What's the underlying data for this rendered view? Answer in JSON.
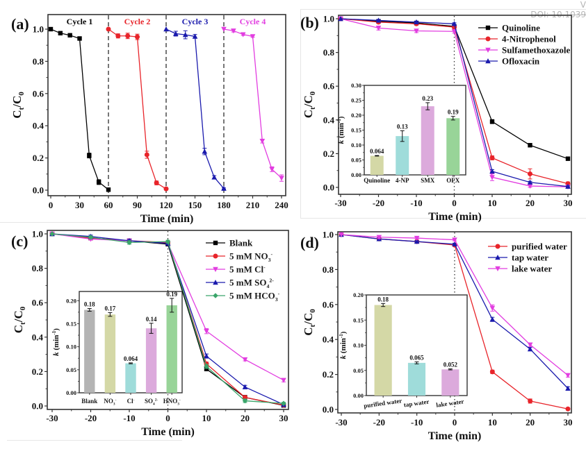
{
  "watermark": {
    "line1": "V",
    "line2": "DOI: 10.1039"
  },
  "chart_data": [
    {
      "id": "a",
      "type": "line",
      "panel_label": "(a)",
      "title": "",
      "xlabel": "Time (min)",
      "ylabel": "Ct/C0",
      "xlim": [
        0,
        240
      ],
      "ylim": [
        0,
        1.0
      ],
      "xticks": [
        0,
        30,
        60,
        90,
        120,
        150,
        180,
        210,
        240
      ],
      "yticks": [
        0.0,
        0.2,
        0.4,
        0.6,
        0.8,
        1.0
      ],
      "ytick_labels": [
        "0.0",
        "0.2",
        "0.4",
        "0.6",
        "0.8",
        "1.0"
      ],
      "vlines_dashed": [
        60,
        120,
        180
      ],
      "annotations": [
        {
          "text": "Cycle 1",
          "x": 30,
          "color": "#000000"
        },
        {
          "text": "Cycle 2",
          "x": 90,
          "color": "#e8242a"
        },
        {
          "text": "Cycle 3",
          "x": 150,
          "color": "#1a1aad"
        },
        {
          "text": "Cycle 4",
          "x": 210,
          "color": "#e23de0"
        }
      ],
      "series": [
        {
          "name": "Cycle 1",
          "color": "#000000",
          "marker": "square",
          "x": [
            0,
            10,
            20,
            30,
            40,
            50,
            60
          ],
          "y": [
            1.0,
            0.975,
            0.962,
            0.942,
            0.215,
            0.05,
            0.003
          ],
          "err": [
            0,
            0.005,
            0.008,
            0.006,
            0.015,
            0.015,
            0.003
          ]
        },
        {
          "name": "Cycle 2",
          "color": "#e8242a",
          "marker": "circle",
          "x": [
            60,
            70,
            80,
            90,
            100,
            110,
            120
          ],
          "y": [
            1.0,
            0.958,
            0.958,
            0.952,
            0.22,
            0.045,
            0.008
          ],
          "err": [
            0,
            0.013,
            0.017,
            0.017,
            0.022,
            0.012,
            0.006
          ]
        },
        {
          "name": "Cycle 3",
          "color": "#1a1aad",
          "marker": "triangle-up",
          "x": [
            120,
            130,
            140,
            150,
            160,
            170,
            180
          ],
          "y": [
            1.0,
            0.972,
            0.965,
            0.955,
            0.24,
            0.08,
            0.01
          ],
          "err": [
            0,
            0.015,
            0.025,
            0.012,
            0.02,
            0.01,
            0.004
          ]
        },
        {
          "name": "Cycle 4",
          "color": "#e23de0",
          "marker": "triangle-down",
          "x": [
            180,
            190,
            200,
            210,
            220,
            230,
            240
          ],
          "y": [
            1.0,
            0.99,
            0.967,
            0.955,
            0.305,
            0.13,
            0.075
          ],
          "err": [
            0,
            0.008,
            0.006,
            0.006,
            0.012,
            0.015,
            0.02
          ]
        }
      ]
    },
    {
      "id": "b",
      "type": "line",
      "panel_label": "(b)",
      "xlabel": "Time (min)",
      "ylabel": "Ct/C0",
      "xlim": [
        -30,
        30
      ],
      "ylim": [
        0,
        1.0
      ],
      "xticks": [
        -30,
        -20,
        -10,
        0,
        10,
        20,
        30
      ],
      "yticks": [
        0.0,
        0.2,
        0.4,
        0.6,
        0.8,
        1.0
      ],
      "ytick_labels": [
        "0.0",
        "0.2",
        "0.4",
        "0.6",
        "0.8",
        "1.0"
      ],
      "vline_dotted": 0,
      "legend": "top-right",
      "series": [
        {
          "name": "Quinoline",
          "color": "#000000",
          "marker": "square",
          "x": [
            -30,
            -20,
            -10,
            0,
            10,
            20,
            30
          ],
          "y": [
            1.0,
            0.985,
            0.975,
            0.955,
            0.39,
            0.25,
            0.17
          ],
          "err": [
            0,
            0.008,
            0.008,
            0.008,
            0.012,
            0.01,
            0.006
          ]
        },
        {
          "name": "4-Nitrophenol",
          "color": "#e8242a",
          "marker": "circle",
          "x": [
            -30,
            -20,
            -10,
            0,
            10,
            20,
            30
          ],
          "y": [
            1.0,
            0.98,
            0.97,
            0.95,
            0.175,
            0.08,
            0.022
          ],
          "err": [
            0,
            0.008,
            0.008,
            0.008,
            0.012,
            0.03,
            0.01
          ]
        },
        {
          "name": "Sulfamethoxazole",
          "color": "#e23de0",
          "marker": "triangle-down",
          "x": [
            -30,
            -20,
            -10,
            0,
            10,
            20,
            30
          ],
          "y": [
            1.0,
            0.945,
            0.928,
            0.925,
            0.06,
            0.008,
            0.003
          ],
          "err": [
            0,
            0.012,
            0.01,
            0.01,
            0.02,
            0.008,
            0.004
          ]
        },
        {
          "name": "Ofloxacin",
          "color": "#1a1aad",
          "marker": "triangle-up",
          "x": [
            -30,
            -20,
            -10,
            0,
            10,
            20,
            30
          ],
          "y": [
            1.0,
            0.99,
            0.98,
            0.97,
            0.095,
            0.03,
            0.005
          ],
          "err": [
            0,
            0.006,
            0.006,
            0.006,
            0.01,
            0.006,
            0.004
          ]
        }
      ],
      "inset": {
        "type": "bar",
        "ylabel": "k (min-1)",
        "ylim": [
          0,
          0.3
        ],
        "yticks": [
          0.0,
          0.05,
          0.1,
          0.15,
          0.2,
          0.25,
          0.3
        ],
        "ytick_labels": [
          "0.00",
          "0.05",
          "0.10",
          "0.15",
          "0.20",
          "0.25",
          "0.30"
        ],
        "categories": [
          "Quinoline",
          "4-NP",
          "SMX",
          "OFX"
        ],
        "values": [
          0.064,
          0.13,
          0.23,
          0.19
        ],
        "labels": [
          "0.064",
          "0.13",
          "0.23",
          "0.19"
        ],
        "err": [
          0.001,
          0.018,
          0.012,
          0.006
        ],
        "colors": [
          "#d4d8a6",
          "#9fdcda",
          "#dcaadc",
          "#98d498"
        ]
      }
    },
    {
      "id": "c",
      "type": "line",
      "panel_label": "(c)",
      "xlabel": "Time (min)",
      "ylabel": "Ct/C0",
      "xlim": [
        -30,
        30
      ],
      "ylim": [
        0,
        1.0
      ],
      "xticks": [
        -30,
        -20,
        -10,
        0,
        10,
        20,
        30
      ],
      "yticks": [
        0.0,
        0.2,
        0.4,
        0.6,
        0.8,
        1.0
      ],
      "ytick_labels": [
        "0.0",
        "0.2",
        "0.4",
        "0.6",
        "0.8",
        "1.0"
      ],
      "vline_dotted": 0,
      "legend": "top-right",
      "series": [
        {
          "name": "Blank",
          "legend_html": "Blank",
          "color": "#000000",
          "marker": "square",
          "x": [
            -30,
            -20,
            -10,
            0,
            10,
            20,
            30
          ],
          "y": [
            1.0,
            0.975,
            0.96,
            0.94,
            0.215,
            0.05,
            0.003
          ],
          "err": [
            0,
            0.006,
            0.008,
            0.008,
            0.01,
            0.012,
            0.004
          ]
        },
        {
          "name": "5 mM NO3-",
          "base": "5 mM NO",
          "sub": "3",
          "sup": "-",
          "color": "#e8242a",
          "marker": "circle",
          "x": [
            -30,
            -20,
            -10,
            0,
            10,
            20,
            30
          ],
          "y": [
            1.0,
            0.975,
            0.96,
            0.95,
            0.245,
            0.05,
            0.005
          ],
          "err": [
            0,
            0.006,
            0.008,
            0.008,
            0.01,
            0.01,
            0.004
          ]
        },
        {
          "name": "5 mM Cl-",
          "base": "5 mM Cl",
          "sub": "",
          "sup": "-",
          "color": "#e23de0",
          "marker": "triangle-down",
          "x": [
            -30,
            -20,
            -10,
            0,
            10,
            20,
            30
          ],
          "y": [
            1.0,
            0.97,
            0.96,
            0.945,
            0.435,
            0.27,
            0.15
          ],
          "err": [
            0,
            0.006,
            0.008,
            0.008,
            0.015,
            0.008,
            0.01
          ]
        },
        {
          "name": "5 mM SO42-",
          "base": "5 mM SO",
          "sub": "4",
          "sup": "2-",
          "color": "#1a1aad",
          "marker": "triangle-up",
          "x": [
            -30,
            -20,
            -10,
            0,
            10,
            20,
            30
          ],
          "y": [
            1.0,
            0.985,
            0.96,
            0.945,
            0.29,
            0.11,
            0.008
          ],
          "err": [
            0,
            0.008,
            0.008,
            0.008,
            0.012,
            0.01,
            0.004
          ]
        },
        {
          "name": "5 mM HCO3-",
          "base": "5 mM HCO",
          "sub": "3",
          "sup": "-",
          "color": "#3aa56a",
          "marker": "diamond",
          "x": [
            -30,
            -20,
            -10,
            0,
            10,
            20,
            30
          ],
          "y": [
            1.0,
            0.98,
            0.95,
            0.955,
            0.23,
            0.03,
            0.015
          ],
          "err": [
            0,
            0.008,
            0.01,
            0.008,
            0.012,
            0.01,
            0.006
          ]
        }
      ],
      "inset": {
        "type": "bar",
        "ylabel": "k (min-1)",
        "ylim": [
          0,
          0.22
        ],
        "yticks": [
          0.0,
          0.05,
          0.1,
          0.15,
          0.2
        ],
        "ytick_labels": [
          "0.00",
          "0.05",
          "0.10",
          "0.15",
          "0.20"
        ],
        "categories": [
          "Blank",
          "NO3-",
          "Cl-",
          "SO42-",
          "HNO3-"
        ],
        "category_parts": [
          {
            "base": "Blank",
            "sub": "",
            "sup": ""
          },
          {
            "base": "NO",
            "sub": "3",
            "sup": "-"
          },
          {
            "base": "Cl",
            "sub": "",
            "sup": "-"
          },
          {
            "base": "SO",
            "sub": "4",
            "sup": "2-"
          },
          {
            "base": "HNO",
            "sub": "3",
            "sup": "-"
          }
        ],
        "values": [
          0.18,
          0.17,
          0.064,
          0.14,
          0.19
        ],
        "labels": [
          "0.18",
          "0.17",
          "0.064",
          "0.14",
          "0.19"
        ],
        "err": [
          0.003,
          0.004,
          0.001,
          0.011,
          0.015
        ],
        "colors": [
          "#b4b4b4",
          "#d4d8a6",
          "#9fdcda",
          "#dcaadc",
          "#98d498"
        ]
      }
    },
    {
      "id": "d",
      "type": "line",
      "panel_label": "(d)",
      "xlabel": "Time (min)",
      "ylabel": "Ct/C0",
      "xlim": [
        -30,
        30
      ],
      "ylim": [
        0,
        1.0
      ],
      "xticks": [
        -30,
        -20,
        -10,
        0,
        10,
        20,
        30
      ],
      "yticks": [
        0.0,
        0.2,
        0.4,
        0.6,
        0.8,
        1.0
      ],
      "ytick_labels": [
        "0.0",
        "0.2",
        "0.4",
        "0.6",
        "0.8",
        "1.0"
      ],
      "vline_dotted": 0,
      "legend": "top-right",
      "series": [
        {
          "name": "purified water",
          "color": "#e8242a",
          "marker": "circle",
          "x": [
            -30,
            -20,
            -10,
            0,
            10,
            20,
            30
          ],
          "y": [
            1.0,
            0.975,
            0.96,
            0.94,
            0.215,
            0.048,
            0.003
          ],
          "err": [
            0,
            0.006,
            0.006,
            0.006,
            0.01,
            0.012,
            0.004
          ]
        },
        {
          "name": "tap water",
          "color": "#1a1aad",
          "marker": "triangle-up",
          "x": [
            -30,
            -20,
            -10,
            0,
            10,
            20,
            30
          ],
          "y": [
            1.0,
            0.975,
            0.96,
            0.945,
            0.515,
            0.345,
            0.12
          ],
          "err": [
            0,
            0.008,
            0.006,
            0.006,
            0.012,
            0.01,
            0.01
          ]
        },
        {
          "name": "lake water",
          "color": "#e23de0",
          "marker": "triangle-down",
          "x": [
            -30,
            -20,
            -10,
            0,
            10,
            20,
            30
          ],
          "y": [
            1.0,
            0.985,
            0.98,
            0.97,
            0.58,
            0.37,
            0.195
          ],
          "err": [
            0,
            0.008,
            0.006,
            0.006,
            0.018,
            0.01,
            0.01
          ]
        }
      ],
      "inset": {
        "type": "bar",
        "ylabel": "k (min-1)",
        "ylim": [
          0,
          0.2
        ],
        "yticks": [
          0.0,
          0.05,
          0.1,
          0.15,
          0.2
        ],
        "ytick_labels": [
          "0.00",
          "0.05",
          "0.10",
          "0.15",
          "0.20"
        ],
        "categories": [
          "purified water",
          "tap water",
          "lake water"
        ],
        "values": [
          0.18,
          0.065,
          0.052
        ],
        "labels": [
          "0.18",
          "0.065",
          "0.052"
        ],
        "err": [
          0.003,
          0.002,
          0.001
        ],
        "colors": [
          "#d4d8a6",
          "#9fdcda",
          "#dcaadc"
        ]
      }
    }
  ]
}
